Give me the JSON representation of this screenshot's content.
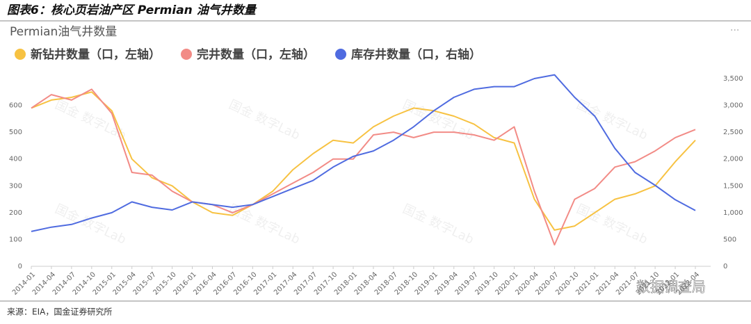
{
  "chart_data": {
    "type": "line",
    "title": "图表6：核心页岩油产区 Permian 油气井数量",
    "subtitle": "Permian油气井数量",
    "source": "来源：EIA，国金证券研究所",
    "watermark": "国金 数字Lab",
    "logo_text": "数据调查局",
    "categories": [
      "2014-01",
      "2014-04",
      "2014-07",
      "2014-10",
      "2015-01",
      "2015-04",
      "2015-07",
      "2015-10",
      "2016-01",
      "2016-04",
      "2016-07",
      "2016-10",
      "2017-01",
      "2017-04",
      "2017-07",
      "2017-10",
      "2018-01",
      "2018-04",
      "2018-07",
      "2018-10",
      "2019-01",
      "2019-04",
      "2019-07",
      "2019-10",
      "2020-01",
      "2020-04",
      "2020-07",
      "2020-10",
      "2021-01",
      "2021-04",
      "2021-07",
      "2021-10",
      "2022-01",
      "2022-04"
    ],
    "series": [
      {
        "name": "新钻井数量（口，左轴）",
        "color": "#f7c242",
        "axis": "y",
        "values": [
          590,
          620,
          630,
          650,
          580,
          400,
          330,
          300,
          240,
          200,
          190,
          230,
          280,
          360,
          420,
          470,
          460,
          520,
          560,
          590,
          580,
          560,
          530,
          480,
          460,
          250,
          135,
          150,
          200,
          250,
          270,
          300,
          390,
          470
        ]
      },
      {
        "name": "完井数量（口，左轴）",
        "color": "#f28b86",
        "axis": "y",
        "values": [
          590,
          640,
          620,
          660,
          570,
          350,
          340,
          280,
          240,
          230,
          200,
          230,
          270,
          310,
          350,
          400,
          400,
          490,
          500,
          480,
          500,
          500,
          490,
          470,
          520,
          280,
          80,
          250,
          290,
          370,
          390,
          430,
          480,
          510
        ]
      },
      {
        "name": "库存井数量（口，右轴）",
        "color": "#4f6be0",
        "axis": "y2",
        "values": [
          650,
          730,
          780,
          900,
          1000,
          1200,
          1100,
          1050,
          1200,
          1150,
          1100,
          1150,
          1300,
          1450,
          1600,
          1850,
          2050,
          2150,
          2350,
          2600,
          2900,
          3150,
          3300,
          3350,
          3350,
          3500,
          3570,
          3150,
          2800,
          2200,
          1750,
          1510,
          1240,
          1040
        ]
      }
    ],
    "ylim": [
      0,
      700
    ],
    "yticks": [
      0,
      100,
      200,
      300,
      400,
      500,
      600
    ],
    "y2lim": [
      0,
      3500
    ],
    "y2ticks": [
      0,
      500,
      {
        "value": 1000,
        "label": "1,000"
      },
      {
        "value": 1500,
        "label": "1,500"
      },
      {
        "value": 2000,
        "label": "2,000"
      },
      {
        "value": 2500,
        "label": "2,500"
      },
      {
        "value": 3000,
        "label": "3,000"
      },
      {
        "value": 3500,
        "label": "3,500"
      }
    ],
    "grid": false
  }
}
